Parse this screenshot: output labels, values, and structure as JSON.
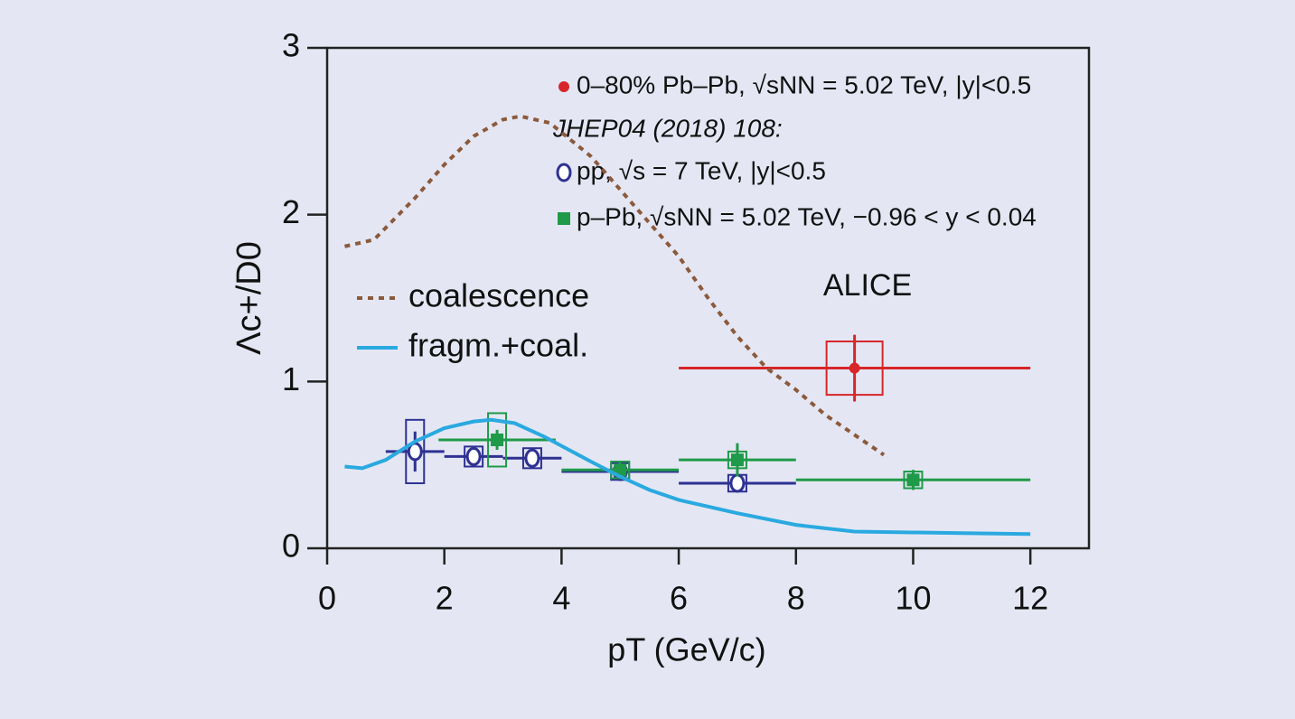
{
  "chart_data": {
    "type": "errorbar",
    "x_label": "pT (GeV/c)",
    "y_label": "Λc+/D0",
    "xlim": [
      0,
      13
    ],
    "ylim": [
      0,
      3
    ],
    "xticks": [
      0,
      2,
      4,
      6,
      8,
      10,
      12
    ],
    "yticks": [
      0,
      1,
      2,
      3
    ],
    "reference": "JHEP04 (2018) 108:",
    "annotation": "ALICE",
    "series": [
      {
        "name": "0–80% Pb–Pb, √sNN = 5.02 TeV, |y|<0.5",
        "color": "#d7262b",
        "marker": "circle",
        "x": [
          9
        ],
        "values": [
          1.08
        ],
        "xerr": [
          3
        ],
        "yerr": [
          0.2
        ],
        "syst": [
          0.16
        ]
      },
      {
        "name": "pp, √s = 7 TeV, |y|<0.5",
        "color": "#2e3192",
        "marker": "open-circle",
        "x": [
          1.5,
          2.5,
          3.5,
          5,
          7
        ],
        "values": [
          0.58,
          0.55,
          0.54,
          0.46,
          0.39
        ],
        "xerr": [
          0.5,
          0.5,
          0.5,
          1,
          1
        ],
        "yerr": [
          0.12,
          0.04,
          0.04,
          0.04,
          0.04
        ],
        "syst": [
          0.19,
          0.06,
          0.06,
          0.05,
          0.05
        ]
      },
      {
        "name": "p–Pb, √sNN = 5.02 TeV, −0.96 < y < 0.04",
        "color": "#1f9a48",
        "marker": "square",
        "x": [
          2.9,
          5,
          7,
          10
        ],
        "values": [
          0.65,
          0.47,
          0.53,
          0.41
        ],
        "xerr": [
          1,
          1,
          1,
          2
        ],
        "yerr": [
          0.06,
          0.05,
          0.1,
          0.06
        ],
        "syst": [
          0.16,
          0.05,
          0.05,
          0.05
        ]
      },
      {
        "name": "coalescence",
        "color": "#8b5a3c",
        "marker": "dashed",
        "x": [
          0.3,
          0.8,
          1.5,
          2,
          2.5,
          3,
          3.3,
          3.8,
          4.5,
          5,
          5.5,
          6,
          6.5,
          7,
          7.5,
          8,
          8.5,
          9,
          9.5
        ],
        "values": [
          1.81,
          1.85,
          2.1,
          2.3,
          2.47,
          2.57,
          2.59,
          2.55,
          2.35,
          2.15,
          1.95,
          1.75,
          1.5,
          1.27,
          1.08,
          0.95,
          0.8,
          0.68,
          0.56
        ]
      },
      {
        "name": "fragm.+coal.",
        "color": "#2aa9e0",
        "marker": "solid",
        "x": [
          0.3,
          0.6,
          1,
          1.5,
          2,
          2.5,
          2.8,
          3.2,
          3.7,
          4.5,
          5,
          5.5,
          6,
          7,
          8,
          9,
          10,
          11,
          12
        ],
        "values": [
          0.49,
          0.48,
          0.53,
          0.64,
          0.72,
          0.76,
          0.77,
          0.75,
          0.67,
          0.52,
          0.43,
          0.35,
          0.29,
          0.21,
          0.14,
          0.1,
          0.095,
          0.09,
          0.085
        ]
      }
    ]
  }
}
